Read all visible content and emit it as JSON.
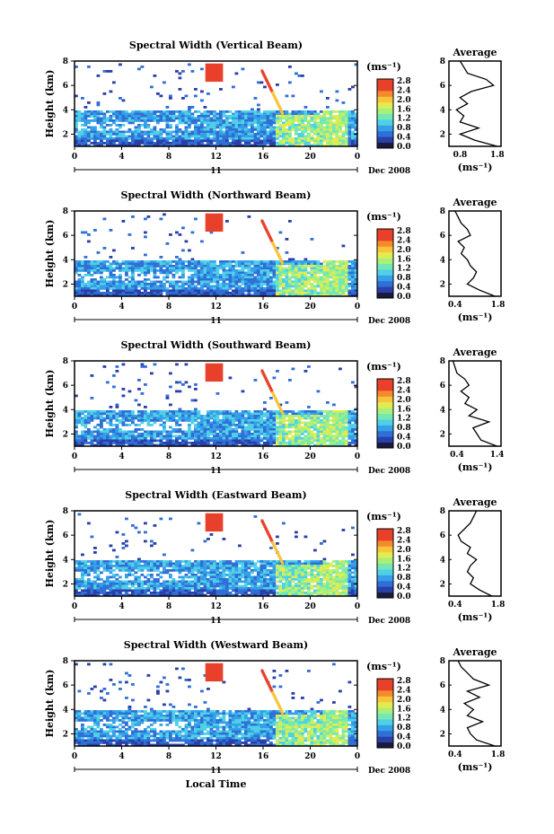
{
  "colors": {
    "colormap": [
      "#1a1a3d",
      "#2a3fa8",
      "#2f6fd6",
      "#35a0e8",
      "#4fd0e6",
      "#74e8b4",
      "#a8f07a",
      "#e2ec52",
      "#f8c43a",
      "#f58a2c",
      "#e8402a",
      "#e8402a"
    ]
  },
  "chart_data": [
    {
      "type": "heatmap",
      "title": "Spectral Width (Vertical Beam)",
      "ylabel": "Height (km)",
      "yticks": [
        "2",
        "4",
        "6",
        "8"
      ],
      "ylim": [
        1,
        8
      ],
      "xticks": [
        "0",
        "4",
        "8",
        "12",
        "16",
        "20",
        "0"
      ],
      "xlim": [
        0,
        24
      ],
      "day_label": "11",
      "date_label": "Dec 2008",
      "colorbar_unit": "(ms⁻¹)",
      "colorbar_ticks": [
        "0.0",
        "0.4",
        "0.8",
        "1.2",
        "1.6",
        "2.0",
        "2.4",
        "2.8"
      ],
      "average": {
        "title": "Average",
        "xticks": [
          "0.8",
          "1.8"
        ],
        "xlim": [
          0.5,
          1.9
        ],
        "xlabel": "(ms⁻¹)",
        "heights": [
          1.0,
          1.5,
          2.0,
          2.5,
          3.0,
          3.5,
          4.0,
          4.5,
          5.0,
          5.5,
          6.0,
          6.5,
          7.0,
          7.5,
          8.0
        ],
        "values": [
          1.8,
          1.2,
          0.8,
          1.3,
          0.8,
          0.9,
          0.7,
          1.0,
          0.8,
          1.1,
          1.7,
          1.5,
          1.0,
          0.9,
          0.8
        ]
      }
    },
    {
      "type": "heatmap",
      "title": "Spectral Width (Northward Beam)",
      "ylabel": "Height (km)",
      "yticks": [
        "2",
        "4",
        "6",
        "8"
      ],
      "ylim": [
        1,
        8
      ],
      "xticks": [
        "0",
        "4",
        "8",
        "12",
        "16",
        "20",
        "0"
      ],
      "xlim": [
        0,
        24
      ],
      "day_label": "11",
      "date_label": "Dec 2008",
      "colorbar_unit": "(ms⁻¹)",
      "colorbar_ticks": [
        "0.0",
        "0.4",
        "0.8",
        "1.2",
        "1.6",
        "2.0",
        "2.4",
        "2.8"
      ],
      "average": {
        "title": "Average",
        "xticks": [
          "0.4",
          "1.8"
        ],
        "xlim": [
          0.2,
          1.9
        ],
        "xlabel": "(ms⁻¹)",
        "heights": [
          1.0,
          1.5,
          2.0,
          2.5,
          3.0,
          3.5,
          4.0,
          4.5,
          5.0,
          5.5,
          6.0,
          6.5,
          7.0,
          7.5,
          8.0
        ],
        "values": [
          1.7,
          1.2,
          0.8,
          1.0,
          1.1,
          0.9,
          0.8,
          0.6,
          0.7,
          0.5,
          0.9,
          0.8,
          0.6,
          0.5,
          0.4
        ]
      }
    },
    {
      "type": "heatmap",
      "title": "Spectral Width (Southward Beam)",
      "ylabel": "Height (km)",
      "yticks": [
        "2",
        "4",
        "6",
        "8"
      ],
      "ylim": [
        1,
        8
      ],
      "xticks": [
        "0",
        "4",
        "8",
        "12",
        "16",
        "20",
        "0"
      ],
      "xlim": [
        0,
        24
      ],
      "day_label": "11",
      "date_label": "Dec 2008",
      "colorbar_unit": "(ms⁻¹)",
      "colorbar_ticks": [
        "0.0",
        "0.4",
        "0.8",
        "1.2",
        "1.6",
        "2.0",
        "2.4",
        "2.8"
      ],
      "average": {
        "title": "Average",
        "xticks": [
          "0.4",
          "1.4"
        ],
        "xlim": [
          0.2,
          1.5
        ],
        "xlabel": "(ms⁻¹)",
        "heights": [
          1.0,
          1.5,
          2.0,
          2.5,
          3.0,
          3.5,
          4.0,
          4.5,
          5.0,
          5.5,
          6.0,
          6.5,
          7.0,
          7.5,
          8.0
        ],
        "values": [
          1.4,
          1.0,
          0.9,
          0.8,
          1.2,
          0.7,
          0.9,
          0.6,
          0.7,
          0.5,
          0.7,
          0.6,
          0.4,
          0.35,
          0.3
        ]
      }
    },
    {
      "type": "heatmap",
      "title": "Spectral Width (Eastward Beam)",
      "ylabel": "Height (km)",
      "yticks": [
        "2",
        "4",
        "6",
        "8"
      ],
      "ylim": [
        1,
        8
      ],
      "xticks": [
        "0",
        "4",
        "8",
        "12",
        "16",
        "20",
        "0"
      ],
      "xlim": [
        0,
        24
      ],
      "day_label": "11",
      "date_label": "Dec 2008",
      "colorbar_unit": "(ms⁻¹)",
      "colorbar_ticks": [
        "0.0",
        "0.4",
        "0.8",
        "1.2",
        "1.6",
        "2.0",
        "2.4",
        "2.8"
      ],
      "average": {
        "title": "Average",
        "xticks": [
          "0.4",
          "1.8"
        ],
        "xlim": [
          0.2,
          1.9
        ],
        "xlabel": "(ms⁻¹)",
        "heights": [
          1.0,
          1.5,
          2.0,
          2.5,
          3.0,
          3.5,
          4.0,
          4.5,
          5.0,
          5.5,
          6.0,
          6.5,
          7.0,
          7.5,
          8.0
        ],
        "values": [
          1.6,
          1.2,
          0.9,
          1.0,
          0.8,
          0.9,
          1.1,
          0.8,
          0.9,
          0.6,
          0.5,
          0.7,
          0.9,
          1.0,
          1.1
        ]
      }
    },
    {
      "type": "heatmap",
      "title": "Spectral Width (Westward Beam)",
      "ylabel": "Height (km)",
      "yticks": [
        "2",
        "4",
        "6",
        "8"
      ],
      "ylim": [
        1,
        8
      ],
      "xticks": [
        "0",
        "4",
        "8",
        "12",
        "16",
        "20",
        "0"
      ],
      "xlim": [
        0,
        24
      ],
      "day_label": "11",
      "date_label": "Dec 2008",
      "colorbar_unit": "(ms⁻¹)",
      "colorbar_ticks": [
        "0.0",
        "0.4",
        "0.8",
        "1.2",
        "1.6",
        "2.0",
        "2.4",
        "2.8"
      ],
      "xlabel": "Local Time",
      "average": {
        "title": "Average",
        "xticks": [
          "0.4",
          "1.8"
        ],
        "xlim": [
          0.2,
          1.9
        ],
        "xlabel": "(ms⁻¹)",
        "heights": [
          1.0,
          1.5,
          2.0,
          2.5,
          3.0,
          3.5,
          4.0,
          4.5,
          5.0,
          5.5,
          6.0,
          6.5,
          7.0,
          7.5,
          8.0
        ],
        "values": [
          1.7,
          1.1,
          0.9,
          0.8,
          1.3,
          0.8,
          1.0,
          0.7,
          1.2,
          0.8,
          1.5,
          1.0,
          0.8,
          0.6,
          0.5
        ]
      }
    }
  ]
}
